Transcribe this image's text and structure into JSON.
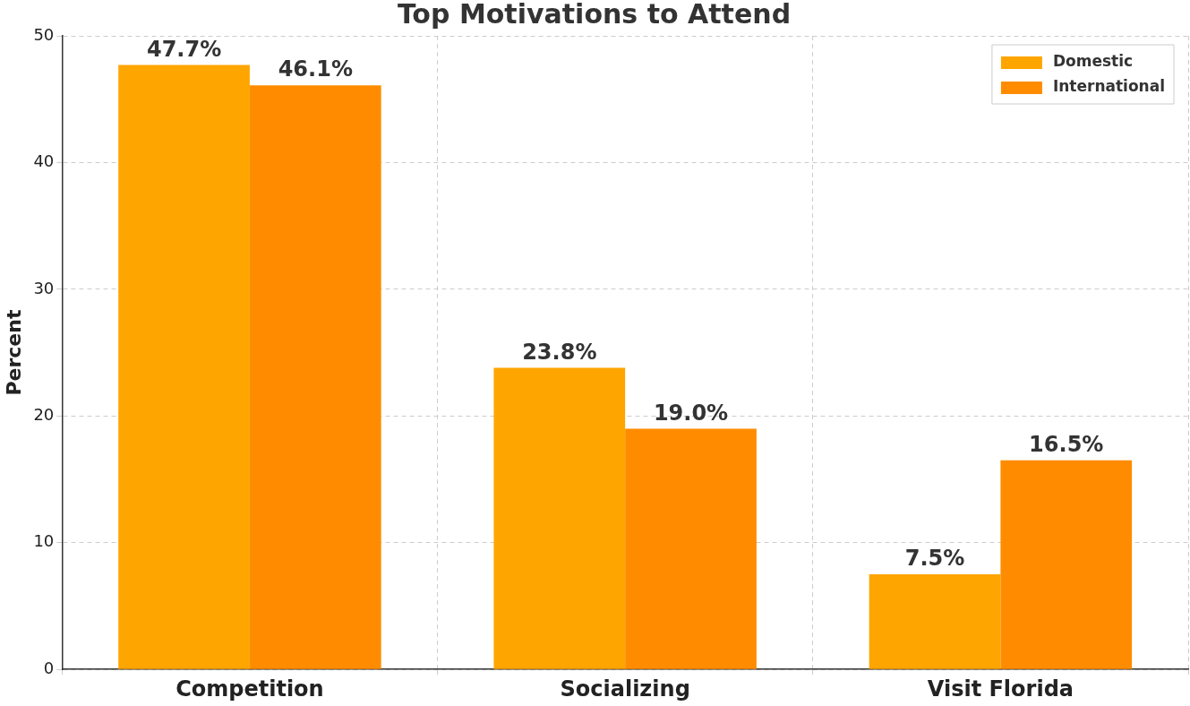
{
  "chart_data": {
    "type": "bar",
    "title": "Top Motivations to Attend",
    "ylabel": "Percent",
    "categories": [
      "Competition",
      "Socializing",
      "Visit Florida"
    ],
    "series": [
      {
        "name": "Domestic",
        "color": "#ffa500",
        "values": [
          47.7,
          23.8,
          7.5
        ],
        "value_labels": [
          "47.7%",
          "23.8%",
          "7.5%"
        ]
      },
      {
        "name": "International",
        "color": "#ff8c00",
        "values": [
          46.1,
          19.0,
          16.5
        ],
        "value_labels": [
          "46.1%",
          "19.0%",
          "16.5%"
        ]
      }
    ],
    "ylim": [
      0,
      50
    ],
    "yticks": [
      0,
      10,
      20,
      30,
      40,
      50
    ],
    "grid": true,
    "legend": "top right"
  }
}
